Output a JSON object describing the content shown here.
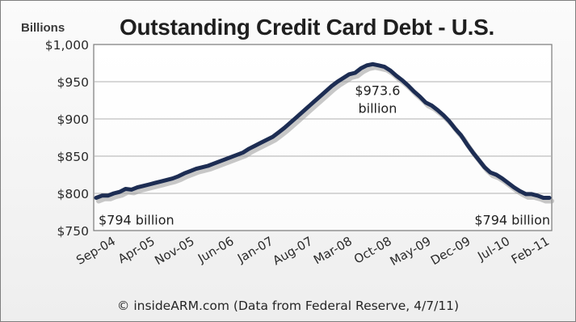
{
  "chart_data": {
    "type": "line",
    "title": "Outstanding Credit Card Debt - U.S.",
    "y_units": "Billions",
    "xlabel": "",
    "ylabel": "",
    "ylim": [
      750,
      1000
    ],
    "y_ticks": [
      750,
      800,
      850,
      900,
      950,
      1000
    ],
    "y_tick_labels": [
      "$750",
      "$800",
      "$850",
      "$900",
      "$950",
      "$1,000"
    ],
    "x_tick_labels": [
      "Sep-04",
      "Apr-05",
      "Nov-05",
      "Jun-06",
      "Jan-07",
      "Aug-07",
      "Mar-08",
      "Oct-08",
      "May-09",
      "Dec-09",
      "Jul-10",
      "Feb-11"
    ],
    "grid": true,
    "legend": "none",
    "colors": {
      "line": "#1d2d53",
      "shadow": "#9a9a9a",
      "grid": "#b0b0b0"
    },
    "series": [
      {
        "name": "",
        "x": [
          0,
          1,
          2,
          3,
          4,
          5,
          6,
          7,
          8,
          9,
          10,
          11,
          12,
          13,
          14,
          15,
          16,
          17,
          18,
          19,
          20,
          21,
          22,
          23,
          24,
          25,
          26,
          27,
          28,
          29,
          30,
          31,
          32,
          33,
          34,
          35,
          36,
          37,
          38,
          39,
          40,
          41,
          42,
          43,
          44,
          45,
          46,
          47,
          48,
          49,
          50,
          51,
          52,
          53,
          54,
          55,
          56,
          57,
          58,
          59,
          60,
          61,
          62,
          63,
          64,
          65,
          66,
          67,
          68,
          69,
          70,
          71,
          72,
          73,
          74,
          75,
          76,
          77
        ],
        "values": [
          794,
          797,
          797,
          800,
          802,
          806,
          805,
          808,
          810,
          812,
          814,
          816,
          818,
          820,
          823,
          827,
          830,
          833,
          835,
          837,
          840,
          843,
          846,
          849,
          852,
          855,
          860,
          864,
          868,
          872,
          876,
          882,
          888,
          895,
          902,
          909,
          916,
          923,
          930,
          937,
          944,
          950,
          955,
          960,
          962,
          968,
          972,
          973.6,
          972,
          970,
          965,
          958,
          952,
          945,
          937,
          930,
          922,
          918,
          912,
          905,
          897,
          887,
          878,
          866,
          855,
          845,
          835,
          828,
          825,
          820,
          814,
          808,
          803,
          799,
          799,
          797,
          794,
          794
        ]
      }
    ],
    "annotations": [
      {
        "text": "$794 billion",
        "x": 0,
        "y": 794
      },
      {
        "text": "$973.6",
        "line2": "billion",
        "x": 47,
        "y": 973.6
      },
      {
        "text": "$794 billion",
        "x": 77,
        "y": 794
      }
    ]
  },
  "footer": "© insideARM.com (Data from Federal Reserve, 4/7/11)"
}
